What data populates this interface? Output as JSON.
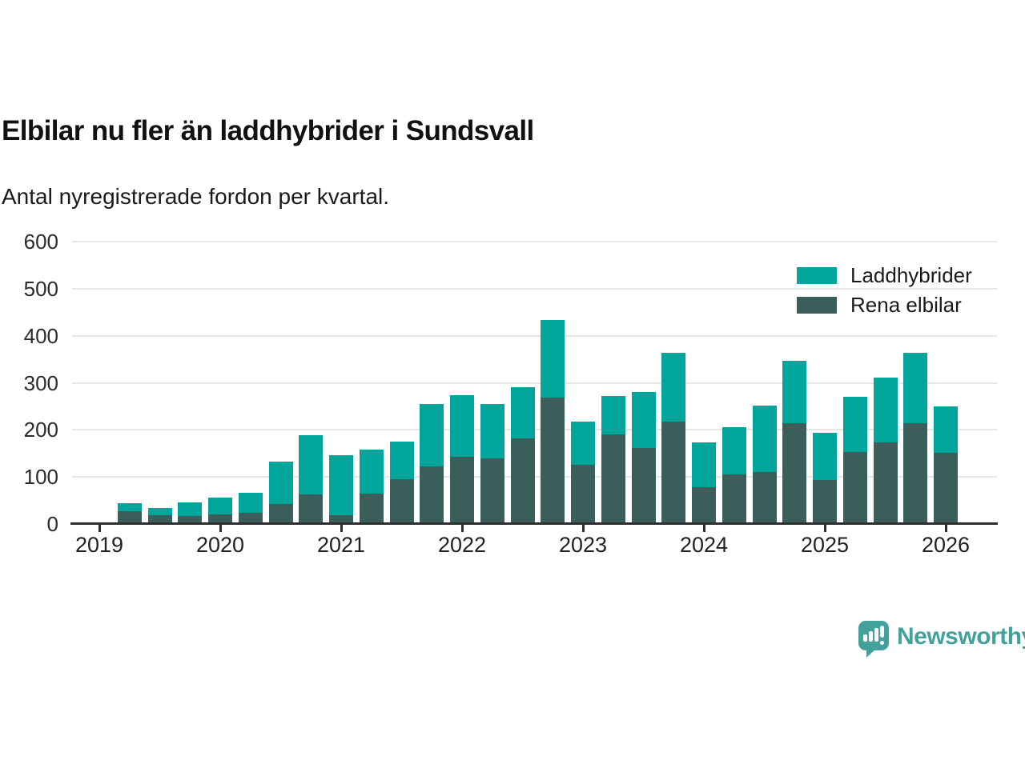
{
  "chart_data": {
    "type": "bar",
    "stacked": true,
    "title": "Elbilar nu fler än laddhybrider i Sundsvall",
    "subtitle": "Antal nyregistrerade fordon per kvartal.",
    "categories": [
      "2019 Q2",
      "2019 Q3",
      "2019 Q4",
      "2020 Q1",
      "2020 Q2",
      "2020 Q3",
      "2020 Q4",
      "2021 Q1",
      "2021 Q2",
      "2021 Q3",
      "2021 Q4",
      "2022 Q1",
      "2022 Q2",
      "2022 Q3",
      "2022 Q4",
      "2023 Q1",
      "2023 Q2",
      "2023 Q3",
      "2023 Q4",
      "2024 Q1",
      "2024 Q2",
      "2024 Q3",
      "2024 Q4",
      "2025 Q1",
      "2025 Q2",
      "2025 Q3",
      "2025 Q4",
      "2026 Q1"
    ],
    "series": [
      {
        "name": "Laddhybrider",
        "color": "#00a59c",
        "values": [
          17,
          15,
          29,
          36,
          42,
          90,
          126,
          128,
          93,
          80,
          133,
          131,
          116,
          109,
          166,
          92,
          82,
          119,
          146,
          95,
          101,
          142,
          133,
          100,
          117,
          138,
          150,
          99
        ]
      },
      {
        "name": "Rena elbilar",
        "color": "#3a5f5a",
        "values": [
          28,
          19,
          17,
          20,
          24,
          42,
          63,
          19,
          65,
          95,
          122,
          143,
          139,
          182,
          268,
          126,
          190,
          162,
          218,
          78,
          105,
          110,
          214,
          94,
          153,
          173,
          214,
          151
        ]
      }
    ],
    "stack_order_bottom_to_top": [
      "Rena elbilar",
      "Laddhybrider"
    ],
    "totals": [
      45,
      34,
      46,
      56,
      66,
      132,
      189,
      147,
      158,
      175,
      255,
      274,
      255,
      291,
      434,
      218,
      272,
      281,
      364,
      173,
      206,
      252,
      347,
      194,
      270,
      311,
      364,
      250
    ],
    "y_axis": {
      "min": 0,
      "max": 600,
      "ticks": [
        0,
        100,
        200,
        300,
        400,
        500,
        600
      ]
    },
    "x_axis": {
      "tick_labels": [
        "2019",
        "2020",
        "2021",
        "2022",
        "2023",
        "2024",
        "2025",
        "2026"
      ]
    },
    "legend_position": "top-right",
    "grid": "horizontal"
  },
  "branding": {
    "wordmark": "Newsworthy",
    "logo_icon": "newsworthy-speech-bubble-bar-chart-icon",
    "color": "#42a29b"
  }
}
